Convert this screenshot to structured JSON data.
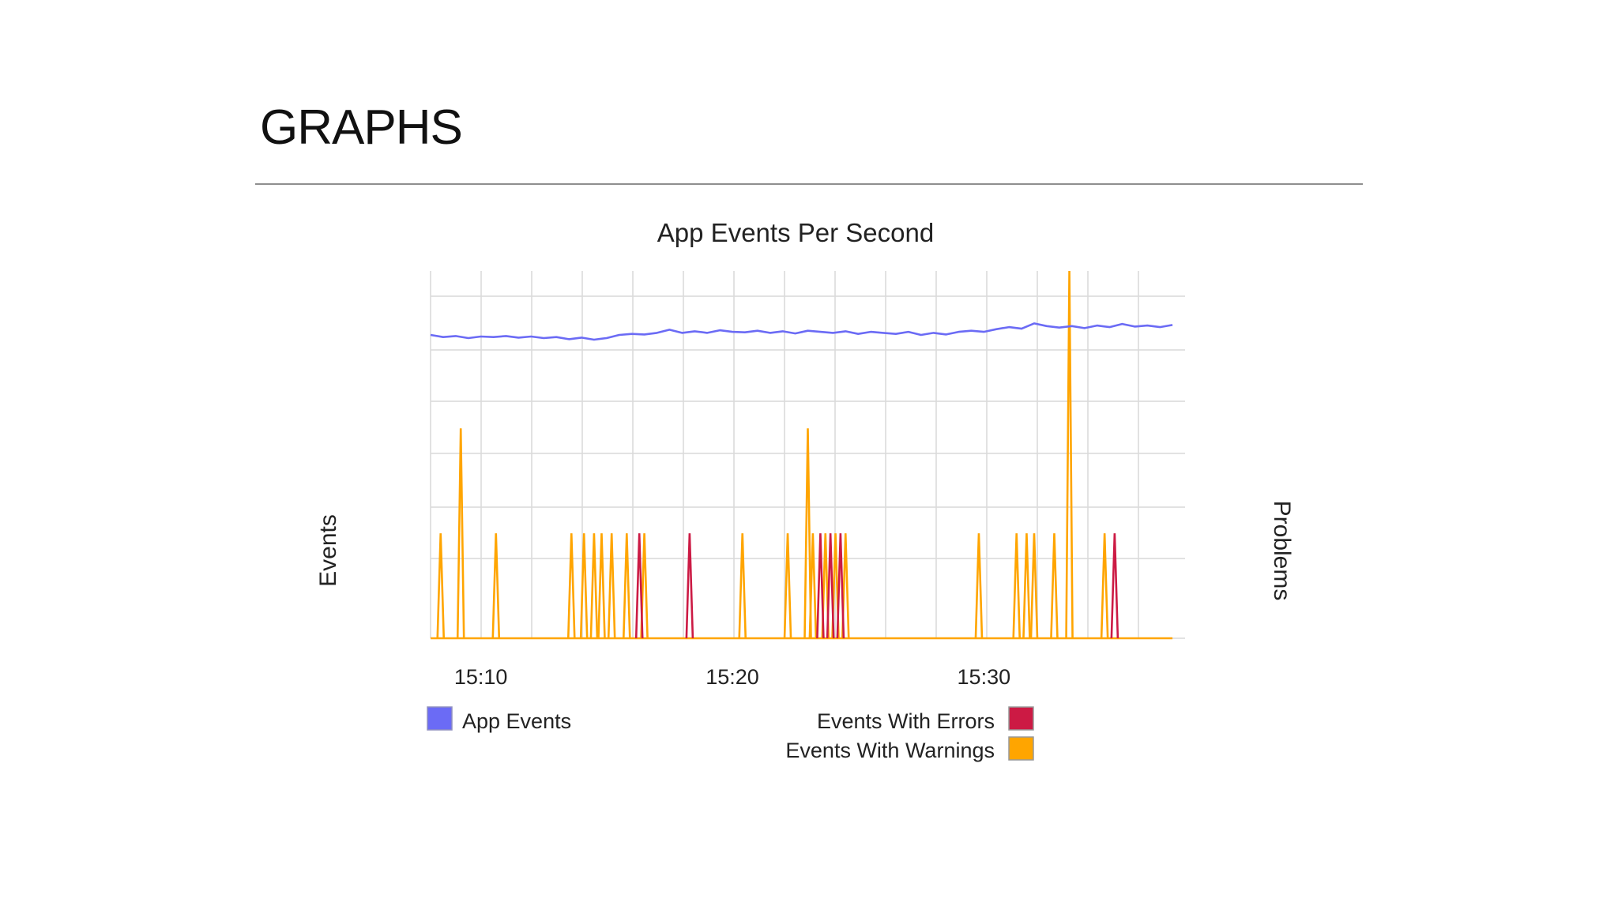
{
  "slide": {
    "title": "GRAPHS"
  },
  "chart_data": {
    "type": "line",
    "title": "App Events Per Second",
    "xlabel": "",
    "ylabel_left": "Events",
    "ylabel_right": "Problems",
    "x_unit": "minutes",
    "x_ticks": [
      {
        "value": 10,
        "label": "15:10"
      },
      {
        "value": 20,
        "label": "15:20"
      },
      {
        "value": 30,
        "label": "15:30"
      }
    ],
    "x_range": [
      8,
      38
    ],
    "grid": true,
    "legend_position": "bottom",
    "colors": {
      "app_events": "#6b6bf5",
      "errors": "#cc1a44",
      "warnings": "#ffa500",
      "grid": "#d9d9d9"
    },
    "series": [
      {
        "name": "App Events",
        "axis": "left",
        "color": "#6b6bf5",
        "y_range": [
          0,
          7
        ],
        "points": [
          [
            8.0,
            5.78
          ],
          [
            8.5,
            5.74
          ],
          [
            9.0,
            5.76
          ],
          [
            9.5,
            5.72
          ],
          [
            10.0,
            5.75
          ],
          [
            10.5,
            5.74
          ],
          [
            11.0,
            5.76
          ],
          [
            11.5,
            5.73
          ],
          [
            12.0,
            5.75
          ],
          [
            12.5,
            5.72
          ],
          [
            13.0,
            5.74
          ],
          [
            13.5,
            5.7
          ],
          [
            14.0,
            5.73
          ],
          [
            14.5,
            5.69
          ],
          [
            15.0,
            5.72
          ],
          [
            15.5,
            5.78
          ],
          [
            16.0,
            5.8
          ],
          [
            16.5,
            5.79
          ],
          [
            17.0,
            5.82
          ],
          [
            17.5,
            5.88
          ],
          [
            18.0,
            5.82
          ],
          [
            18.5,
            5.85
          ],
          [
            19.0,
            5.82
          ],
          [
            19.5,
            5.87
          ],
          [
            20.0,
            5.84
          ],
          [
            20.5,
            5.83
          ],
          [
            21.0,
            5.86
          ],
          [
            21.5,
            5.82
          ],
          [
            22.0,
            5.85
          ],
          [
            22.5,
            5.81
          ],
          [
            23.0,
            5.86
          ],
          [
            23.5,
            5.84
          ],
          [
            24.0,
            5.82
          ],
          [
            24.5,
            5.85
          ],
          [
            25.0,
            5.8
          ],
          [
            25.5,
            5.84
          ],
          [
            26.0,
            5.82
          ],
          [
            26.5,
            5.8
          ],
          [
            27.0,
            5.84
          ],
          [
            27.5,
            5.78
          ],
          [
            28.0,
            5.82
          ],
          [
            28.5,
            5.79
          ],
          [
            29.0,
            5.84
          ],
          [
            29.5,
            5.86
          ],
          [
            30.0,
            5.84
          ],
          [
            30.5,
            5.89
          ],
          [
            31.0,
            5.93
          ],
          [
            31.5,
            5.9
          ],
          [
            32.0,
            6.0
          ],
          [
            32.5,
            5.95
          ],
          [
            33.0,
            5.92
          ],
          [
            33.5,
            5.95
          ],
          [
            34.0,
            5.91
          ],
          [
            34.5,
            5.96
          ],
          [
            35.0,
            5.93
          ],
          [
            35.5,
            5.99
          ],
          [
            36.0,
            5.94
          ],
          [
            36.5,
            5.96
          ],
          [
            37.0,
            5.93
          ],
          [
            37.5,
            5.97
          ]
        ]
      },
      {
        "name": "Events With Errors",
        "axis": "right",
        "color": "#cc1a44",
        "y_range": [
          0,
          7
        ],
        "spikes": [
          {
            "x": 16.3,
            "y": 2
          },
          {
            "x": 18.3,
            "y": 2
          },
          {
            "x": 23.5,
            "y": 2
          },
          {
            "x": 23.9,
            "y": 2
          },
          {
            "x": 24.3,
            "y": 2
          },
          {
            "x": 35.2,
            "y": 2
          }
        ]
      },
      {
        "name": "Events With Warnings",
        "axis": "right",
        "color": "#ffa500",
        "y_range": [
          0,
          7
        ],
        "spikes": [
          {
            "x": 8.4,
            "y": 2
          },
          {
            "x": 9.2,
            "y": 4
          },
          {
            "x": 10.6,
            "y": 2
          },
          {
            "x": 13.6,
            "y": 2
          },
          {
            "x": 14.1,
            "y": 2
          },
          {
            "x": 14.5,
            "y": 2
          },
          {
            "x": 14.8,
            "y": 2
          },
          {
            "x": 15.2,
            "y": 2
          },
          {
            "x": 15.8,
            "y": 2
          },
          {
            "x": 16.5,
            "y": 2
          },
          {
            "x": 20.4,
            "y": 2
          },
          {
            "x": 22.2,
            "y": 2
          },
          {
            "x": 23.0,
            "y": 4
          },
          {
            "x": 23.2,
            "y": 2
          },
          {
            "x": 23.7,
            "y": 2
          },
          {
            "x": 24.1,
            "y": 2
          },
          {
            "x": 24.5,
            "y": 2
          },
          {
            "x": 29.8,
            "y": 2
          },
          {
            "x": 31.3,
            "y": 2
          },
          {
            "x": 31.7,
            "y": 2
          },
          {
            "x": 32.0,
            "y": 2
          },
          {
            "x": 32.8,
            "y": 2
          },
          {
            "x": 33.4,
            "y": 7
          },
          {
            "x": 34.8,
            "y": 2
          }
        ]
      }
    ],
    "legend": [
      {
        "label": "App Events",
        "color": "#6b6bf5",
        "side": "left"
      },
      {
        "label": "Events With Errors",
        "color": "#cc1a44",
        "side": "right"
      },
      {
        "label": "Events With Warnings",
        "color": "#ffa500",
        "side": "right"
      }
    ]
  }
}
